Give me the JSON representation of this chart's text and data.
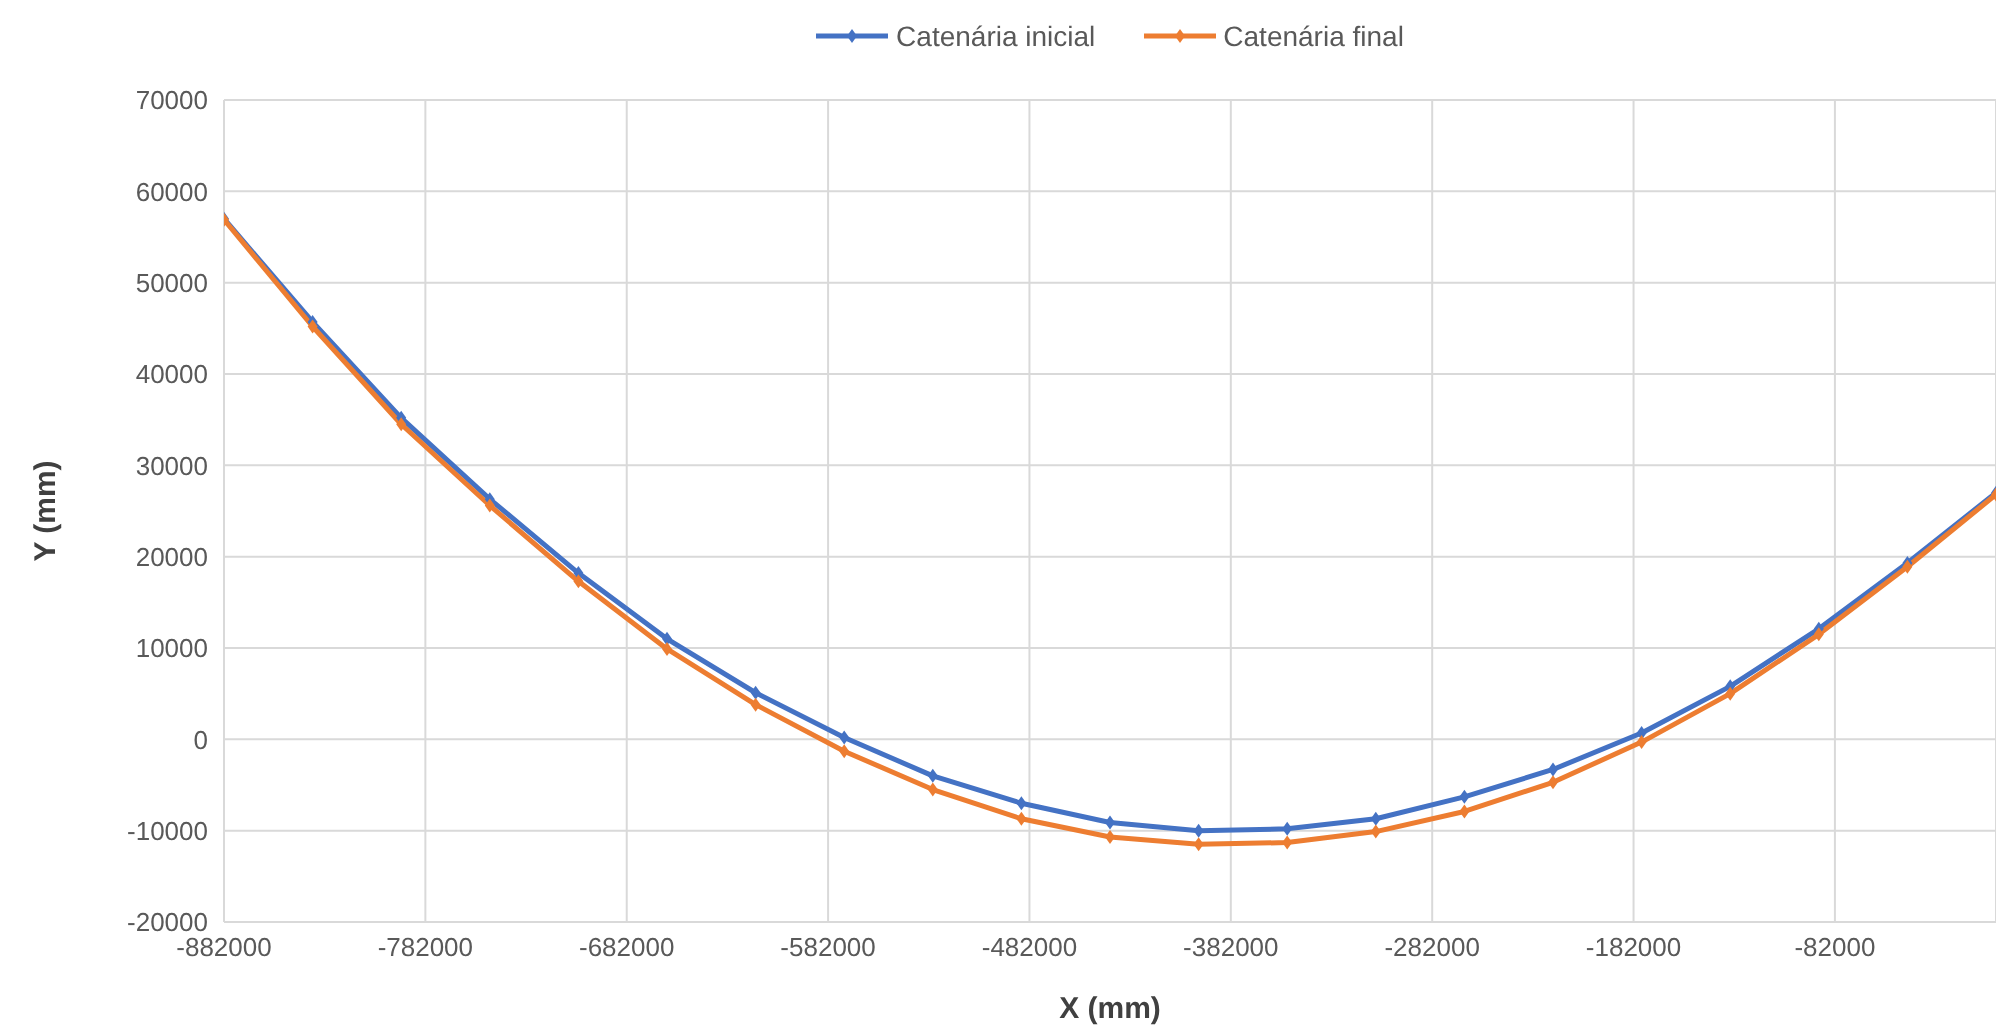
{
  "chart_data": {
    "type": "line",
    "xlabel": "X (mm)",
    "ylabel": "Y (mm)",
    "x": [
      -882000,
      -838000,
      -794000,
      -750000,
      -706000,
      -662000,
      -618000,
      -574000,
      -530000,
      -486000,
      -442000,
      -398000,
      -354000,
      -310000,
      -266000,
      -222000,
      -178000,
      -134000,
      -90000,
      -46000,
      -2000
    ],
    "series": [
      {
        "name": "Catenária inicial",
        "color": "#4472c4",
        "values": [
          57000,
          45700,
          35200,
          26300,
          18200,
          11000,
          5100,
          200,
          -4000,
          -7000,
          -9100,
          -10000,
          -9800,
          -8700,
          -6300,
          -3300,
          700,
          5800,
          12100,
          19300,
          27000
        ]
      },
      {
        "name": "Catenária final",
        "color": "#ed7d31",
        "values": [
          56900,
          45200,
          34500,
          25600,
          17300,
          9900,
          3800,
          -1300,
          -5500,
          -8700,
          -10700,
          -11500,
          -11300,
          -10100,
          -7900,
          -4700,
          -300,
          5000,
          11500,
          18900,
          26800
        ]
      }
    ],
    "xlim": [
      -882000,
      -2000
    ],
    "xticks": [
      -882000,
      -782000,
      -682000,
      -582000,
      -482000,
      -382000,
      -282000,
      -182000,
      -82000
    ],
    "ylim": [
      -20000,
      70000
    ],
    "yticks": [
      -20000,
      -10000,
      0,
      10000,
      20000,
      30000,
      40000,
      50000,
      60000,
      70000
    ],
    "grid": true,
    "legend": "top",
    "marker": "diamond",
    "line_style": "solid"
  }
}
